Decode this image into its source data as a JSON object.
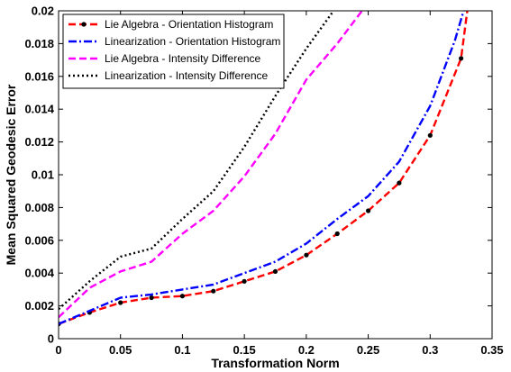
{
  "chart_data": {
    "type": "line",
    "title": "",
    "xlabel": "Transformation Norm",
    "ylabel": "Mean Squared Geodesic Error",
    "xlim": [
      0,
      0.35
    ],
    "ylim": [
      0,
      0.02
    ],
    "xticks": [
      0,
      0.05,
      0.1,
      0.15,
      0.2,
      0.25,
      0.3,
      0.35
    ],
    "xtick_labels": [
      "0",
      "0.05",
      "0.1",
      "0.15",
      "0.2",
      "0.25",
      "0.3",
      "0.35"
    ],
    "yticks": [
      0,
      0.002,
      0.004,
      0.006,
      0.008,
      0.01,
      0.012,
      0.014,
      0.016,
      0.018,
      0.02
    ],
    "ytick_labels": [
      "0",
      "0.002",
      "0.004",
      "0.006",
      "0.008",
      "0.01",
      "0.012",
      "0.014",
      "0.016",
      "0.018",
      "0.02"
    ],
    "grid": false,
    "legend_position": "top-left",
    "series": [
      {
        "name": "Lie Algebra - Orientation Histogram",
        "color": "#ff0000",
        "dash": "dashed",
        "marker": "dot",
        "x": [
          0,
          0.025,
          0.05,
          0.075,
          0.1,
          0.125,
          0.15,
          0.175,
          0.2,
          0.225,
          0.25,
          0.275,
          0.3,
          0.325,
          0.33
        ],
        "y": [
          0.0009,
          0.0016,
          0.0022,
          0.0025,
          0.0026,
          0.0029,
          0.0035,
          0.0041,
          0.0051,
          0.0064,
          0.0078,
          0.0095,
          0.0124,
          0.0171,
          0.02
        ]
      },
      {
        "name": "Linearization - Orientation Histogram",
        "color": "#0000ff",
        "dash": "dashdot",
        "marker": "none",
        "x": [
          0,
          0.025,
          0.05,
          0.075,
          0.1,
          0.125,
          0.15,
          0.175,
          0.2,
          0.225,
          0.25,
          0.275,
          0.3,
          0.32,
          0.327
        ],
        "y": [
          0.0009,
          0.0017,
          0.0025,
          0.0027,
          0.003,
          0.0033,
          0.004,
          0.0047,
          0.0058,
          0.0073,
          0.0087,
          0.0108,
          0.0142,
          0.0182,
          0.02
        ]
      },
      {
        "name": "Lie Algebra - Intensity Difference",
        "color": "#ff00ff",
        "dash": "dashed",
        "marker": "none",
        "x": [
          0,
          0.025,
          0.05,
          0.075,
          0.1,
          0.125,
          0.15,
          0.175,
          0.2,
          0.225,
          0.245
        ],
        "y": [
          0.0013,
          0.0031,
          0.0041,
          0.0047,
          0.0064,
          0.0078,
          0.0099,
          0.0125,
          0.0158,
          0.018,
          0.02
        ]
      },
      {
        "name": "Linearization - Intensity Difference",
        "color": "#000000",
        "dash": "dotted",
        "marker": "none",
        "x": [
          0,
          0.025,
          0.05,
          0.075,
          0.1,
          0.125,
          0.15,
          0.175,
          0.2,
          0.222
        ],
        "y": [
          0.0018,
          0.0035,
          0.005,
          0.0055,
          0.0073,
          0.009,
          0.0117,
          0.0148,
          0.0177,
          0.02
        ]
      }
    ]
  }
}
